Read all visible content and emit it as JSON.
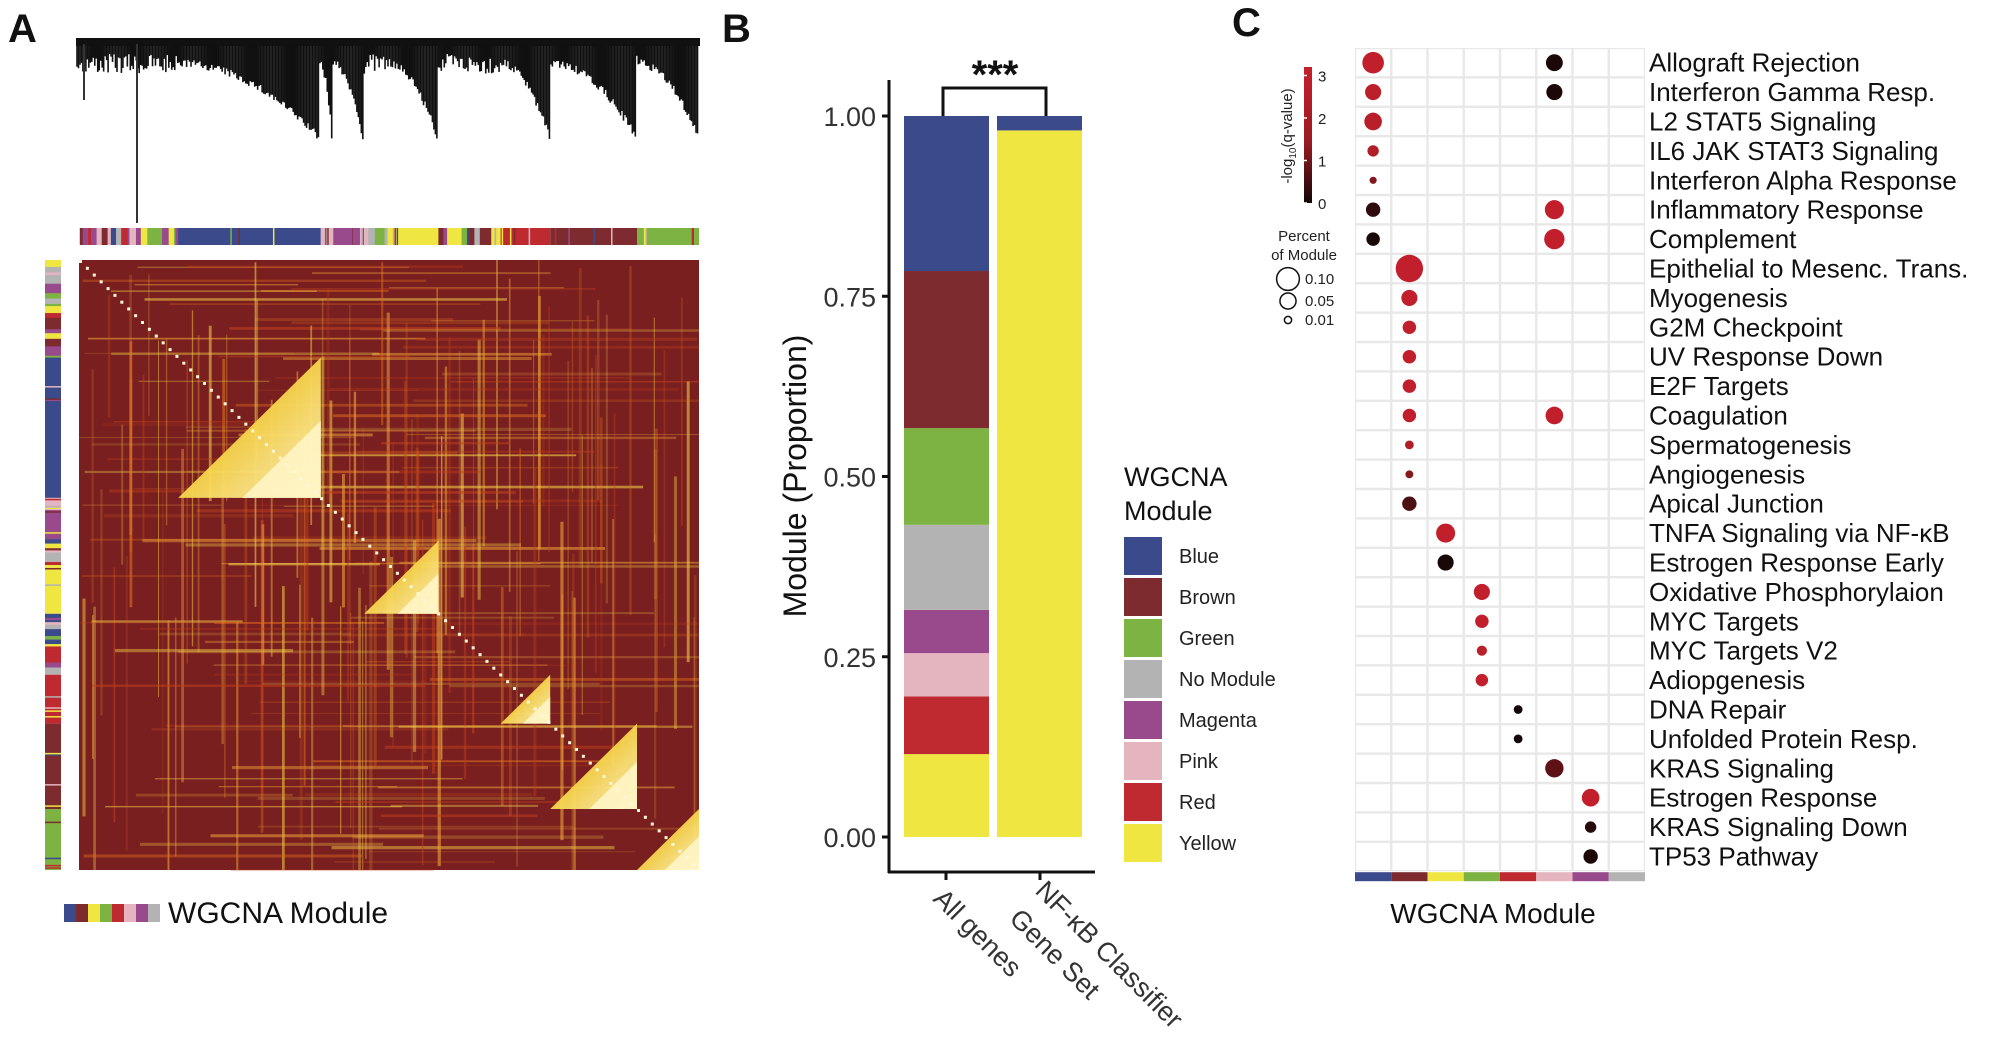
{
  "panels": {
    "a": "A",
    "b": "B",
    "c": "C"
  },
  "module_colors": {
    "Blue": "#3b4a8a",
    "Brown": "#7d2b2e",
    "Green": "#7cb342",
    "No Module": "#b3b3b3",
    "Magenta": "#984a8c",
    "Pink": "#e5b5bf",
    "Red": "#bf2a30",
    "Yellow": "#efe641"
  },
  "chart_data": [
    {
      "panel": "A",
      "type": "heatmap",
      "legend_label": "WGCNA Module",
      "legend_colors": [
        "#3b4a8a",
        "#7d2b2e",
        "#efe641",
        "#7cb342",
        "#bf2a30",
        "#e5b5bf",
        "#984a8c",
        "#b3b3b3"
      ],
      "colormap": [
        "#7a1f1f",
        "#e05a1a",
        "#f7d54a",
        "#fff7c0"
      ],
      "has_dendrogram": true
    },
    {
      "panel": "B",
      "type": "bar",
      "stacked": true,
      "ylabel": "Module (Proportion)",
      "ylim": [
        0,
        1
      ],
      "yticks": [
        "0.00",
        "0.25",
        "0.50",
        "0.75",
        "1.00"
      ],
      "categories": [
        "All genes",
        "NF-κB Classifier Gene Set"
      ],
      "category_lines": [
        [
          "All genes"
        ],
        [
          "NF-κB Classifier",
          "Gene Set"
        ]
      ],
      "significance": "***",
      "legend_title": [
        "WGCNA",
        "Module"
      ],
      "legend_position": "right",
      "series": [
        {
          "name": "Yellow",
          "values": [
            0.115,
            0.98
          ]
        },
        {
          "name": "Red",
          "values": [
            0.08,
            0
          ]
        },
        {
          "name": "Pink",
          "values": [
            0.06,
            0
          ]
        },
        {
          "name": "Magenta",
          "values": [
            0.06,
            0
          ]
        },
        {
          "name": "No Module",
          "values": [
            0.118,
            0
          ]
        },
        {
          "name": "Green",
          "values": [
            0.134,
            0
          ]
        },
        {
          "name": "Brown",
          "values": [
            0.218,
            0
          ]
        },
        {
          "name": "Blue",
          "values": [
            0.215,
            0.02
          ]
        }
      ],
      "legend_order": [
        "Blue",
        "Brown",
        "Green",
        "No Module",
        "Magenta",
        "Pink",
        "Red",
        "Yellow"
      ]
    },
    {
      "panel": "C",
      "type": "scatter",
      "xlabel": "WGCNA Module",
      "columns": [
        "Blue",
        "Brown",
        "Yellow",
        "Green",
        "Red",
        "Pink",
        "Magenta",
        "No Module"
      ],
      "rows": [
        "Allograft Rejection",
        "Interferon Gamma Resp.",
        "L2 STAT5 Signaling",
        "IL6 JAK STAT3 Signaling",
        "Interferon Alpha Response",
        "Inflammatory Response",
        "Complement",
        "Epithelial to Mesenc. Trans.",
        "Myogenesis",
        "G2M Checkpoint",
        "UV Response Down",
        "E2F Targets",
        "Coagulation",
        "Spermatogenesis",
        "Angiogenesis",
        "Apical Junction",
        "TNFA Signaling via NF-κB",
        "Estrogen Response Early",
        "Oxidative Phosphorylaion",
        "MYC Targets",
        "MYC Targets V2",
        "Adiopgenesis",
        "DNA Repair",
        "Unfolded Protein Resp.",
        "KRAS Signaling",
        "Estrogen Response",
        "KRAS Signaling Down",
        "TP53 Pathway"
      ],
      "color_legend": {
        "title_parts": [
          "-log",
          "10",
          "(q-value)"
        ],
        "ticks": [
          "3",
          "2",
          "1",
          "0"
        ],
        "range": [
          0,
          3.2
        ],
        "low_color": "#140707",
        "high_color": "#c5202c"
      },
      "size_legend": {
        "title": [
          "Percent",
          "of Module"
        ],
        "values": [
          0.1,
          0.05,
          0.01
        ],
        "labels": [
          "0.10",
          "0.05",
          "0.01"
        ]
      },
      "points": [
        {
          "row": "Allograft Rejection",
          "col": "Blue",
          "percent": 0.09,
          "neg_log10_q": 3.0
        },
        {
          "row": "Allograft Rejection",
          "col": "Pink",
          "percent": 0.055,
          "neg_log10_q": 0.1
        },
        {
          "row": "Interferon Gamma Resp.",
          "col": "Blue",
          "percent": 0.05,
          "neg_log10_q": 2.8
        },
        {
          "row": "Interferon Gamma Resp.",
          "col": "Pink",
          "percent": 0.05,
          "neg_log10_q": 0.1
        },
        {
          "row": "L2 STAT5 Signaling",
          "col": "Blue",
          "percent": 0.06,
          "neg_log10_q": 2.7
        },
        {
          "row": "IL6 JAK STAT3 Signaling",
          "col": "Blue",
          "percent": 0.025,
          "neg_log10_q": 2.4
        },
        {
          "row": "Interferon Alpha Response",
          "col": "Blue",
          "percent": 0.01,
          "neg_log10_q": 1.2
        },
        {
          "row": "Inflammatory Response",
          "col": "Blue",
          "percent": 0.04,
          "neg_log10_q": 0.3
        },
        {
          "row": "Inflammatory Response",
          "col": "Pink",
          "percent": 0.07,
          "neg_log10_q": 3.0
        },
        {
          "row": "Complement",
          "col": "Blue",
          "percent": 0.035,
          "neg_log10_q": 0.05
        },
        {
          "row": "Complement",
          "col": "Pink",
          "percent": 0.08,
          "neg_log10_q": 3.0
        },
        {
          "row": "Epithelial to Mesenc. Trans.",
          "col": "Brown",
          "percent": 0.145,
          "neg_log10_q": 3.0
        },
        {
          "row": "Myogenesis",
          "col": "Brown",
          "percent": 0.05,
          "neg_log10_q": 3.0
        },
        {
          "row": "G2M Checkpoint",
          "col": "Brown",
          "percent": 0.035,
          "neg_log10_q": 3.0
        },
        {
          "row": "UV Response Down",
          "col": "Brown",
          "percent": 0.035,
          "neg_log10_q": 3.0
        },
        {
          "row": "E2F Targets",
          "col": "Brown",
          "percent": 0.035,
          "neg_log10_q": 3.0
        },
        {
          "row": "Coagulation",
          "col": "Brown",
          "percent": 0.035,
          "neg_log10_q": 3.0
        },
        {
          "row": "Coagulation",
          "col": "Pink",
          "percent": 0.06,
          "neg_log10_q": 3.0
        },
        {
          "row": "Spermatogenesis",
          "col": "Brown",
          "percent": 0.015,
          "neg_log10_q": 2.4
        },
        {
          "row": "Angiogenesis",
          "col": "Brown",
          "percent": 0.012,
          "neg_log10_q": 1.2
        },
        {
          "row": "Apical Junction",
          "col": "Brown",
          "percent": 0.04,
          "neg_log10_q": 0.6
        },
        {
          "row": "TNFA Signaling via NF-κB",
          "col": "Yellow",
          "percent": 0.07,
          "neg_log10_q": 3.0
        },
        {
          "row": "Estrogen Response Early",
          "col": "Yellow",
          "percent": 0.05,
          "neg_log10_q": 0.05
        },
        {
          "row": "Oxidative Phosphorylaion",
          "col": "Green",
          "percent": 0.05,
          "neg_log10_q": 3.0
        },
        {
          "row": "MYC Targets",
          "col": "Green",
          "percent": 0.035,
          "neg_log10_q": 3.0
        },
        {
          "row": "MYC Targets V2",
          "col": "Green",
          "percent": 0.02,
          "neg_log10_q": 2.8
        },
        {
          "row": "Adiopgenesis",
          "col": "Green",
          "percent": 0.03,
          "neg_log10_q": 3.0
        },
        {
          "row": "DNA Repair",
          "col": "Red",
          "percent": 0.015,
          "neg_log10_q": 0.0
        },
        {
          "row": "Unfolded Protein Resp.",
          "col": "Red",
          "percent": 0.015,
          "neg_log10_q": 0.0
        },
        {
          "row": "KRAS Signaling",
          "col": "Pink",
          "percent": 0.065,
          "neg_log10_q": 0.8
        },
        {
          "row": "Estrogen Response",
          "col": "Magenta",
          "percent": 0.06,
          "neg_log10_q": 3.0
        },
        {
          "row": "KRAS Signaling Down",
          "col": "Magenta",
          "percent": 0.025,
          "neg_log10_q": 0.2
        },
        {
          "row": "TP53 Pathway",
          "col": "Magenta",
          "percent": 0.04,
          "neg_log10_q": 0.1
        }
      ]
    }
  ]
}
